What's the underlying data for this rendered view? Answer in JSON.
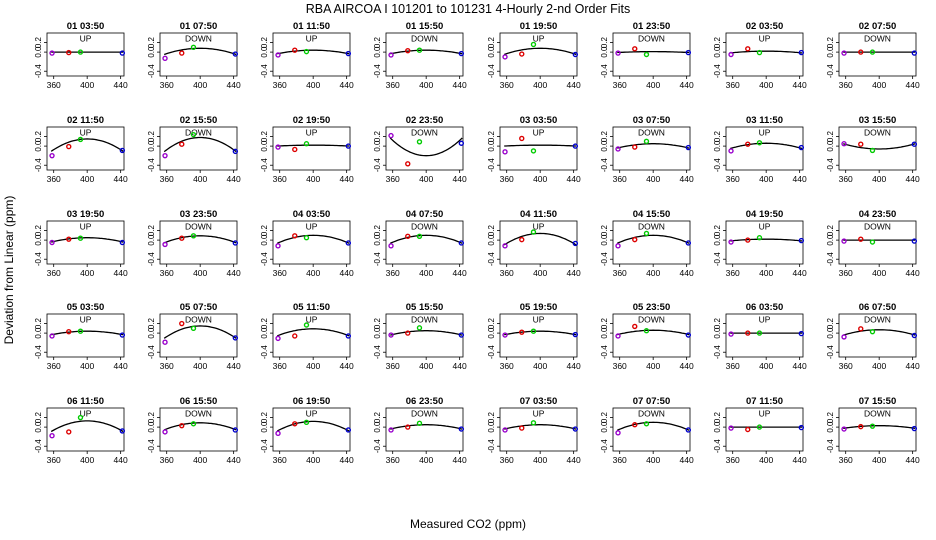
{
  "chart_data": {
    "type": "scatter",
    "title": "RBA   AIRCOA I   101201 to 101231   4-Hourly 2-nd Order Fits",
    "xlabel": "Measured CO2 (ppm)",
    "ylabel": "Deviation from Linear (ppm)",
    "xlim": [
      352,
      444
    ],
    "ylim": [
      -0.5,
      0.4
    ],
    "xticks": [
      "360",
      "400",
      "440"
    ],
    "yticks": [
      "-0.4",
      "0.0",
      "0.2"
    ],
    "grid": false,
    "point_colors": {
      "cal1": "#9900cc",
      "cal2": "#dd0000",
      "cal3": "#00cc00",
      "cal4": "#0000cc"
    },
    "panels": [
      {
        "title": "01 03:50",
        "dir": "UP",
        "coef": [
          0,
          0,
          0
        ],
        "points": [
          {
            "x": 358,
            "y": -0.02
          },
          {
            "x": 378,
            "y": -0.01
          },
          {
            "x": 392,
            "y": 0.0
          },
          {
            "x": 442,
            "y": -0.02
          }
        ]
      },
      {
        "title": "01 07:50",
        "dir": "DOWN",
        "coef": [
          0.08,
          0,
          -7e-05
        ],
        "points": [
          {
            "x": 358,
            "y": -0.13
          },
          {
            "x": 378,
            "y": -0.02
          },
          {
            "x": 392,
            "y": 0.1
          },
          {
            "x": 442,
            "y": -0.04
          }
        ]
      },
      {
        "title": "01 11:50",
        "dir": "UP",
        "coef": [
          0.04,
          0,
          -4e-05
        ],
        "points": [
          {
            "x": 358,
            "y": -0.06
          },
          {
            "x": 378,
            "y": 0.04
          },
          {
            "x": 392,
            "y": 0.01
          },
          {
            "x": 442,
            "y": -0.03
          }
        ]
      },
      {
        "title": "01 15:50",
        "dir": "DOWN",
        "coef": [
          0.04,
          0,
          -4e-05
        ],
        "points": [
          {
            "x": 358,
            "y": -0.06
          },
          {
            "x": 378,
            "y": 0.03
          },
          {
            "x": 392,
            "y": 0.04
          },
          {
            "x": 442,
            "y": -0.03
          }
        ]
      },
      {
        "title": "01 19:50",
        "dir": "UP",
        "coef": [
          0.08,
          0,
          -7e-05
        ],
        "points": [
          {
            "x": 358,
            "y": -0.1
          },
          {
            "x": 378,
            "y": -0.04
          },
          {
            "x": 392,
            "y": 0.16
          },
          {
            "x": 442,
            "y": -0.05
          }
        ]
      },
      {
        "title": "01 23:50",
        "dir": "DOWN",
        "coef": [
          0.01,
          0,
          -1e-05
        ],
        "points": [
          {
            "x": 358,
            "y": -0.02
          },
          {
            "x": 378,
            "y": 0.07
          },
          {
            "x": 392,
            "y": -0.05
          },
          {
            "x": 442,
            "y": -0.01
          }
        ]
      },
      {
        "title": "02 03:50",
        "dir": "UP",
        "coef": [
          0.02,
          0,
          -2e-05
        ],
        "points": [
          {
            "x": 358,
            "y": -0.05
          },
          {
            "x": 378,
            "y": 0.07
          },
          {
            "x": 392,
            "y": -0.01
          },
          {
            "x": 442,
            "y": -0.01
          }
        ]
      },
      {
        "title": "02 07:50",
        "dir": "DOWN",
        "coef": [
          0,
          0,
          0
        ],
        "points": [
          {
            "x": 358,
            "y": -0.02
          },
          {
            "x": 378,
            "y": 0.0
          },
          {
            "x": 392,
            "y": 0.0
          },
          {
            "x": 442,
            "y": -0.02
          }
        ]
      },
      {
        "title": "02 11:50",
        "dir": "UP",
        "coef": [
          0.15,
          0,
          -0.00014
        ],
        "points": [
          {
            "x": 358,
            "y": -0.2
          },
          {
            "x": 378,
            "y": -0.01
          },
          {
            "x": 392,
            "y": 0.14
          },
          {
            "x": 442,
            "y": -0.09
          }
        ]
      },
      {
        "title": "02 15:50",
        "dir": "DOWN",
        "coef": [
          0.18,
          0,
          -0.00016
        ],
        "points": [
          {
            "x": 358,
            "y": -0.2
          },
          {
            "x": 378,
            "y": 0.04
          },
          {
            "x": 392,
            "y": 0.24
          },
          {
            "x": 442,
            "y": -0.11
          }
        ]
      },
      {
        "title": "02 19:50",
        "dir": "UP",
        "coef": [
          0.02,
          0,
          -1e-05
        ],
        "points": [
          {
            "x": 358,
            "y": -0.02
          },
          {
            "x": 378,
            "y": -0.07
          },
          {
            "x": 392,
            "y": 0.05
          },
          {
            "x": 442,
            "y": 0.0
          }
        ]
      },
      {
        "title": "02 23:50",
        "dir": "DOWN",
        "coef": [
          -0.2,
          0,
          0.0002
        ],
        "points": [
          {
            "x": 358,
            "y": 0.22
          },
          {
            "x": 378,
            "y": -0.37
          },
          {
            "x": 392,
            "y": 0.09
          },
          {
            "x": 442,
            "y": 0.06
          }
        ]
      },
      {
        "title": "03 03:50",
        "dir": "UP",
        "coef": [
          0.02,
          0,
          -1e-05
        ],
        "points": [
          {
            "x": 358,
            "y": -0.12
          },
          {
            "x": 378,
            "y": 0.16
          },
          {
            "x": 392,
            "y": -0.1
          },
          {
            "x": 442,
            "y": 0.0
          }
        ]
      },
      {
        "title": "03 07:50",
        "dir": "DOWN",
        "coef": [
          0.05,
          0,
          -5e-05
        ],
        "points": [
          {
            "x": 358,
            "y": -0.06
          },
          {
            "x": 378,
            "y": -0.02
          },
          {
            "x": 392,
            "y": 0.1
          },
          {
            "x": 442,
            "y": -0.03
          }
        ]
      },
      {
        "title": "03 11:50",
        "dir": "UP",
        "coef": [
          0.06,
          0,
          -6e-05
        ],
        "points": [
          {
            "x": 358,
            "y": -0.1
          },
          {
            "x": 378,
            "y": 0.04
          },
          {
            "x": 392,
            "y": 0.07
          },
          {
            "x": 442,
            "y": -0.03
          }
        ]
      },
      {
        "title": "03 15:50",
        "dir": "DOWN",
        "coef": [
          -0.06,
          0,
          6e-05
        ],
        "points": [
          {
            "x": 358,
            "y": 0.05
          },
          {
            "x": 378,
            "y": 0.04
          },
          {
            "x": 392,
            "y": -0.09
          },
          {
            "x": 442,
            "y": 0.04
          }
        ]
      },
      {
        "title": "03 19:50",
        "dir": "UP",
        "coef": [
          0.05,
          0,
          -5e-05
        ],
        "points": [
          {
            "x": 358,
            "y": -0.05
          },
          {
            "x": 378,
            "y": 0.02
          },
          {
            "x": 392,
            "y": 0.04
          },
          {
            "x": 442,
            "y": -0.05
          }
        ]
      },
      {
        "title": "03 23:50",
        "dir": "DOWN",
        "coef": [
          0.09,
          0,
          -8e-05
        ],
        "points": [
          {
            "x": 358,
            "y": -0.09
          },
          {
            "x": 378,
            "y": 0.04
          },
          {
            "x": 392,
            "y": 0.09
          },
          {
            "x": 442,
            "y": -0.06
          }
        ]
      },
      {
        "title": "04 03:50",
        "dir": "UP",
        "coef": [
          0.1,
          0,
          -9e-05
        ],
        "points": [
          {
            "x": 358,
            "y": -0.12
          },
          {
            "x": 378,
            "y": 0.09
          },
          {
            "x": 392,
            "y": 0.05
          },
          {
            "x": 442,
            "y": -0.06
          }
        ]
      },
      {
        "title": "04 07:50",
        "dir": "DOWN",
        "coef": [
          0.1,
          0,
          -9e-05
        ],
        "points": [
          {
            "x": 358,
            "y": -0.12
          },
          {
            "x": 378,
            "y": 0.08
          },
          {
            "x": 392,
            "y": 0.08
          },
          {
            "x": 442,
            "y": -0.06
          }
        ]
      },
      {
        "title": "04 11:50",
        "dir": "UP",
        "coef": [
          0.14,
          0,
          -0.00013
        ],
        "points": [
          {
            "x": 358,
            "y": -0.12
          },
          {
            "x": 378,
            "y": 0.01
          },
          {
            "x": 392,
            "y": 0.17
          },
          {
            "x": 442,
            "y": -0.07
          }
        ]
      },
      {
        "title": "04 15:50",
        "dir": "DOWN",
        "coef": [
          0.1,
          0,
          -9e-05
        ],
        "points": [
          {
            "x": 358,
            "y": -0.12
          },
          {
            "x": 378,
            "y": 0.01
          },
          {
            "x": 392,
            "y": 0.14
          },
          {
            "x": 442,
            "y": -0.06
          }
        ]
      },
      {
        "title": "04 19:50",
        "dir": "UP",
        "coef": [
          0.02,
          0,
          -2e-05
        ],
        "points": [
          {
            "x": 358,
            "y": -0.04
          },
          {
            "x": 378,
            "y": 0.0
          },
          {
            "x": 392,
            "y": 0.05
          },
          {
            "x": 442,
            "y": -0.01
          }
        ]
      },
      {
        "title": "04 23:50",
        "dir": "DOWN",
        "coef": [
          0,
          0,
          0
        ],
        "points": [
          {
            "x": 358,
            "y": -0.02
          },
          {
            "x": 378,
            "y": 0.02
          },
          {
            "x": 392,
            "y": -0.04
          },
          {
            "x": 442,
            "y": -0.02
          }
        ]
      },
      {
        "title": "05 03:50",
        "dir": "UP",
        "coef": [
          0.04,
          0,
          -4e-05
        ],
        "points": [
          {
            "x": 358,
            "y": -0.06
          },
          {
            "x": 378,
            "y": 0.03
          },
          {
            "x": 392,
            "y": 0.04
          },
          {
            "x": 442,
            "y": -0.04
          }
        ]
      },
      {
        "title": "05 07:50",
        "dir": "DOWN",
        "coef": [
          0.15,
          0,
          -0.00014
        ],
        "points": [
          {
            "x": 358,
            "y": -0.19
          },
          {
            "x": 378,
            "y": 0.2
          },
          {
            "x": 392,
            "y": 0.1
          },
          {
            "x": 442,
            "y": -0.1
          }
        ]
      },
      {
        "title": "05 11:50",
        "dir": "UP",
        "coef": [
          0.09,
          0,
          -8e-05
        ],
        "points": [
          {
            "x": 358,
            "y": -0.11
          },
          {
            "x": 378,
            "y": -0.06
          },
          {
            "x": 392,
            "y": 0.17
          },
          {
            "x": 442,
            "y": -0.06
          }
        ]
      },
      {
        "title": "05 15:50",
        "dir": "DOWN",
        "coef": [
          0.05,
          0,
          -5e-05
        ],
        "points": [
          {
            "x": 358,
            "y": -0.04
          },
          {
            "x": 378,
            "y": 0.0
          },
          {
            "x": 392,
            "y": 0.11
          },
          {
            "x": 442,
            "y": -0.04
          }
        ]
      },
      {
        "title": "05 19:50",
        "dir": "UP",
        "coef": [
          0.04,
          0,
          -4e-05
        ],
        "points": [
          {
            "x": 358,
            "y": -0.04
          },
          {
            "x": 378,
            "y": 0.02
          },
          {
            "x": 392,
            "y": 0.04
          },
          {
            "x": 442,
            "y": -0.03
          }
        ]
      },
      {
        "title": "05 23:50",
        "dir": "DOWN",
        "coef": [
          0.06,
          0,
          -5e-05
        ],
        "points": [
          {
            "x": 358,
            "y": -0.06
          },
          {
            "x": 378,
            "y": 0.14
          },
          {
            "x": 392,
            "y": 0.05
          },
          {
            "x": 442,
            "y": -0.04
          }
        ]
      },
      {
        "title": "06 03:50",
        "dir": "UP",
        "coef": [
          0,
          0,
          0
        ],
        "points": [
          {
            "x": 358,
            "y": -0.02
          },
          {
            "x": 378,
            "y": 0.0
          },
          {
            "x": 392,
            "y": 0.0
          },
          {
            "x": 442,
            "y": -0.01
          }
        ]
      },
      {
        "title": "06 07:50",
        "dir": "DOWN",
        "coef": [
          0.07,
          0,
          -6e-05
        ],
        "points": [
          {
            "x": 358,
            "y": -0.08
          },
          {
            "x": 378,
            "y": 0.09
          },
          {
            "x": 392,
            "y": 0.03
          },
          {
            "x": 442,
            "y": -0.05
          }
        ]
      },
      {
        "title": "06 11:50",
        "dir": "UP",
        "coef": [
          0.13,
          0,
          -0.00012
        ],
        "points": [
          {
            "x": 358,
            "y": -0.18
          },
          {
            "x": 378,
            "y": -0.1
          },
          {
            "x": 392,
            "y": 0.2
          },
          {
            "x": 442,
            "y": -0.08
          }
        ]
      },
      {
        "title": "06 15:50",
        "dir": "DOWN",
        "coef": [
          0.09,
          0,
          -8e-05
        ],
        "points": [
          {
            "x": 358,
            "y": -0.1
          },
          {
            "x": 378,
            "y": 0.03
          },
          {
            "x": 392,
            "y": 0.07
          },
          {
            "x": 442,
            "y": -0.06
          }
        ]
      },
      {
        "title": "06 19:50",
        "dir": "UP",
        "coef": [
          0.12,
          0,
          -0.00011
        ],
        "points": [
          {
            "x": 358,
            "y": -0.13
          },
          {
            "x": 378,
            "y": 0.07
          },
          {
            "x": 392,
            "y": 0.1
          },
          {
            "x": 442,
            "y": -0.06
          }
        ]
      },
      {
        "title": "06 23:50",
        "dir": "DOWN",
        "coef": [
          0.05,
          0,
          -5e-05
        ],
        "points": [
          {
            "x": 358,
            "y": -0.06
          },
          {
            "x": 378,
            "y": 0.0
          },
          {
            "x": 392,
            "y": 0.08
          },
          {
            "x": 442,
            "y": -0.04
          }
        ]
      },
      {
        "title": "07 03:50",
        "dir": "UP",
        "coef": [
          0.05,
          0,
          -5e-05
        ],
        "points": [
          {
            "x": 358,
            "y": -0.06
          },
          {
            "x": 378,
            "y": -0.02
          },
          {
            "x": 392,
            "y": 0.09
          },
          {
            "x": 442,
            "y": -0.04
          }
        ]
      },
      {
        "title": "07 07:50",
        "dir": "DOWN",
        "coef": [
          0.1,
          0,
          -9e-05
        ],
        "points": [
          {
            "x": 358,
            "y": -0.12
          },
          {
            "x": 378,
            "y": 0.05
          },
          {
            "x": 392,
            "y": 0.07
          },
          {
            "x": 442,
            "y": -0.06
          }
        ]
      },
      {
        "title": "07 11:50",
        "dir": "UP",
        "coef": [
          0,
          0,
          0
        ],
        "points": [
          {
            "x": 358,
            "y": -0.02
          },
          {
            "x": 378,
            "y": -0.05
          },
          {
            "x": 392,
            "y": 0.0
          },
          {
            "x": 442,
            "y": -0.01
          }
        ]
      },
      {
        "title": "07 15:50",
        "dir": "DOWN",
        "coef": [
          0.03,
          0,
          -3e-05
        ],
        "points": [
          {
            "x": 358,
            "y": -0.04
          },
          {
            "x": 378,
            "y": 0.01
          },
          {
            "x": 392,
            "y": 0.02
          },
          {
            "x": 442,
            "y": -0.03
          }
        ]
      }
    ]
  }
}
